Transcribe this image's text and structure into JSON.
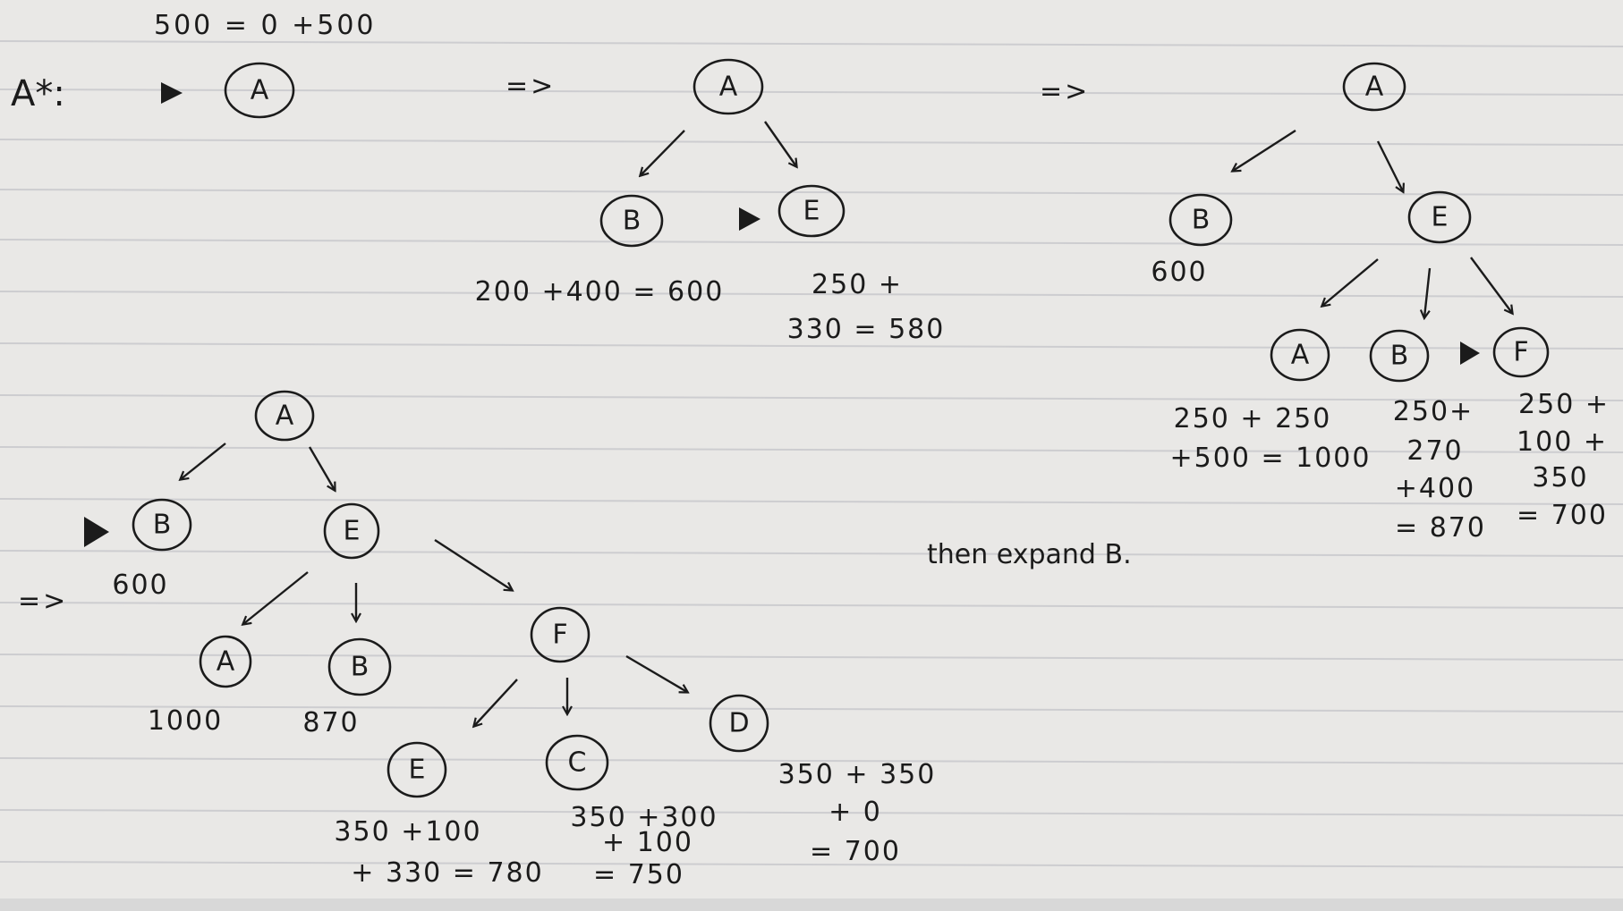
{
  "header": {
    "formula": "500 = 0 +500",
    "algorithm": "A*:",
    "implies": "=>",
    "annotation": "then expand B."
  },
  "diagram": {
    "step1": {
      "root": "A"
    },
    "step2": {
      "root": "A",
      "children": [
        {
          "label": "B",
          "cost_lines": [
            "200 +400 = 600"
          ]
        },
        {
          "label": "E",
          "cost_lines": [
            "250 +",
            "330 = 580"
          ]
        }
      ]
    },
    "step3": {
      "root": "A",
      "left": {
        "label": "B",
        "cost": "600"
      },
      "right": {
        "label": "E"
      },
      "grandchildren": [
        {
          "label": "A",
          "cost_lines": [
            "250 + 250",
            "+500 = 1000"
          ]
        },
        {
          "label": "B",
          "cost_lines": [
            "250+",
            "270",
            "+400",
            "= 870"
          ]
        },
        {
          "label": "F",
          "cost_lines": [
            "250 +",
            "100 +",
            "350",
            "= 700"
          ]
        }
      ]
    },
    "step4": {
      "root": "A",
      "left": {
        "label": "B",
        "cost": "600"
      },
      "right": {
        "label": "E"
      },
      "e_children": [
        {
          "label": "A",
          "cost": "1000"
        },
        {
          "label": "B",
          "cost": "870"
        },
        {
          "label": "F"
        }
      ],
      "f_children": [
        {
          "label": "E",
          "cost_lines": [
            "350 +100",
            "+ 330 = 780"
          ]
        },
        {
          "label": "C",
          "cost_lines": [
            "350 +300",
            "+ 100",
            "= 750"
          ]
        },
        {
          "label": "D",
          "cost_lines": [
            "350 + 350",
            "+ 0",
            "= 700"
          ]
        }
      ]
    }
  }
}
